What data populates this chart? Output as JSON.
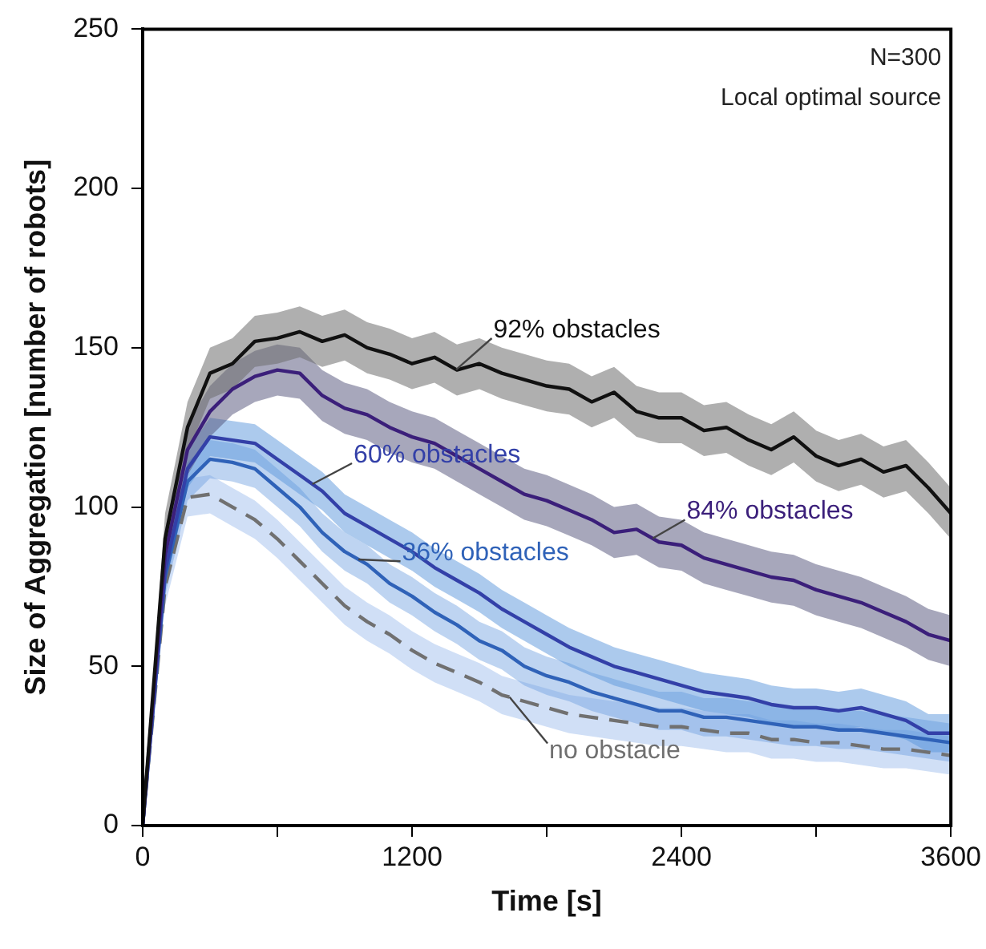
{
  "chart_data": {
    "type": "line",
    "xlabel": "Time [s]",
    "ylabel": "Size of Aggregation [number of robots]",
    "x": [
      0,
      100,
      200,
      300,
      400,
      500,
      600,
      700,
      800,
      900,
      1000,
      1100,
      1200,
      1300,
      1400,
      1500,
      1600,
      1700,
      1800,
      1900,
      2000,
      2100,
      2200,
      2300,
      2400,
      2500,
      2600,
      2700,
      2800,
      2900,
      3000,
      3100,
      3200,
      3300,
      3400,
      3500,
      3600
    ],
    "xlim": [
      0,
      3600
    ],
    "xticks": [
      0,
      {
        "value": 600,
        "label": null
      },
      1200,
      {
        "value": 1800,
        "label": null
      },
      2400,
      {
        "value": 3000,
        "label": null
      },
      3600
    ],
    "ylim": [
      0,
      250
    ],
    "yticks": [
      0,
      50,
      100,
      150,
      200,
      250
    ],
    "grid": false,
    "legend": false,
    "marker": "none",
    "annotations": [
      "N=300",
      "Local optimal source"
    ],
    "series": [
      {
        "name": "92% obstacles",
        "color": "#111111",
        "line_style": "solid",
        "values": [
          0,
          90,
          125,
          142,
          145,
          152,
          153,
          155,
          152,
          154,
          150,
          148,
          145,
          147,
          143,
          145,
          142,
          140,
          138,
          137,
          133,
          136,
          130,
          128,
          128,
          124,
          125,
          121,
          118,
          122,
          116,
          113,
          115,
          111,
          113,
          106,
          98
        ],
        "lower": [
          0,
          82,
          117,
          134,
          137,
          144,
          145,
          147,
          144,
          146,
          142,
          140,
          137,
          139,
          135,
          137,
          134,
          132,
          130,
          129,
          125,
          128,
          122,
          120,
          120,
          116,
          117,
          113,
          110,
          114,
          108,
          105,
          107,
          103,
          105,
          98,
          90
        ],
        "upper": [
          0,
          98,
          133,
          150,
          153,
          160,
          161,
          163,
          160,
          162,
          158,
          156,
          153,
          155,
          151,
          153,
          150,
          148,
          146,
          145,
          141,
          144,
          138,
          136,
          136,
          132,
          133,
          129,
          126,
          130,
          124,
          121,
          123,
          119,
          121,
          114,
          106
        ]
      },
      {
        "name": "84% obstacles",
        "color": "#3b1f7a",
        "line_style": "solid",
        "values": [
          0,
          85,
          118,
          130,
          137,
          141,
          143,
          142,
          135,
          131,
          129,
          125,
          122,
          120,
          116,
          112,
          108,
          104,
          102,
          99,
          96,
          92,
          93,
          89,
          88,
          84,
          82,
          80,
          78,
          77,
          74,
          72,
          70,
          67,
          64,
          60,
          58
        ],
        "lower": [
          0,
          77,
          110,
          122,
          129,
          133,
          135,
          134,
          127,
          123,
          121,
          117,
          114,
          112,
          108,
          104,
          100,
          96,
          94,
          91,
          88,
          84,
          85,
          81,
          80,
          76,
          74,
          72,
          70,
          69,
          66,
          64,
          62,
          59,
          56,
          52,
          50
        ],
        "upper": [
          0,
          93,
          126,
          138,
          145,
          149,
          151,
          150,
          143,
          139,
          137,
          133,
          130,
          128,
          124,
          120,
          116,
          112,
          110,
          107,
          104,
          100,
          101,
          97,
          96,
          92,
          90,
          88,
          86,
          85,
          82,
          80,
          78,
          75,
          72,
          68,
          66
        ]
      },
      {
        "name": "60% obstacles",
        "color": "#3340a8",
        "line_style": "solid",
        "values": [
          0,
          80,
          112,
          122,
          121,
          120,
          115,
          110,
          105,
          98,
          94,
          90,
          86,
          81,
          77,
          73,
          68,
          64,
          60,
          56,
          53,
          50,
          48,
          46,
          44,
          42,
          41,
          40,
          38,
          37,
          37,
          36,
          37,
          35,
          33,
          29,
          29
        ],
        "lower": [
          0,
          74,
          106,
          116,
          115,
          114,
          109,
          104,
          99,
          92,
          88,
          84,
          80,
          75,
          71,
          67,
          62,
          58,
          54,
          50,
          47,
          44,
          42,
          40,
          38,
          36,
          35,
          34,
          32,
          31,
          31,
          30,
          31,
          29,
          27,
          23,
          23
        ],
        "upper": [
          0,
          86,
          118,
          128,
          127,
          126,
          121,
          116,
          111,
          104,
          100,
          96,
          92,
          87,
          83,
          79,
          74,
          70,
          66,
          62,
          59,
          56,
          54,
          52,
          50,
          48,
          47,
          46,
          44,
          43,
          43,
          42,
          43,
          41,
          39,
          35,
          35
        ]
      },
      {
        "name": "36% obstacles",
        "color": "#2f62b8",
        "line_style": "solid",
        "values": [
          0,
          78,
          108,
          115,
          114,
          112,
          106,
          100,
          92,
          86,
          82,
          76,
          72,
          67,
          63,
          58,
          55,
          50,
          47,
          45,
          42,
          40,
          38,
          36,
          36,
          34,
          34,
          33,
          32,
          31,
          31,
          30,
          30,
          29,
          28,
          27,
          26
        ],
        "lower": [
          0,
          72,
          102,
          109,
          108,
          106,
          100,
          94,
          86,
          80,
          76,
          70,
          66,
          61,
          57,
          52,
          49,
          44,
          41,
          39,
          36,
          34,
          32,
          30,
          30,
          28,
          28,
          27,
          26,
          25,
          25,
          24,
          24,
          23,
          22,
          21,
          20
        ],
        "upper": [
          0,
          84,
          114,
          121,
          120,
          118,
          112,
          106,
          98,
          92,
          88,
          82,
          78,
          73,
          69,
          64,
          61,
          56,
          53,
          51,
          48,
          46,
          44,
          42,
          42,
          40,
          40,
          39,
          38,
          37,
          37,
          36,
          36,
          35,
          34,
          33,
          32
        ]
      },
      {
        "name": "no obstacle",
        "color": "#707070",
        "line_style": "dashed",
        "values": [
          0,
          75,
          103,
          104,
          100,
          96,
          90,
          83,
          76,
          69,
          64,
          60,
          55,
          51,
          48,
          45,
          41,
          39,
          37,
          35,
          34,
          33,
          32,
          31,
          31,
          30,
          29,
          29,
          27,
          27,
          26,
          26,
          25,
          24,
          24,
          23,
          22
        ],
        "lower": [
          0,
          69,
          97,
          98,
          94,
          90,
          84,
          77,
          70,
          63,
          58,
          54,
          49,
          45,
          42,
          39,
          35,
          33,
          31,
          29,
          28,
          27,
          26,
          25,
          25,
          24,
          23,
          23,
          21,
          21,
          20,
          20,
          19,
          18,
          18,
          17,
          16
        ],
        "upper": [
          0,
          81,
          109,
          110,
          106,
          102,
          96,
          89,
          82,
          75,
          70,
          66,
          61,
          57,
          54,
          51,
          47,
          45,
          43,
          41,
          40,
          39,
          38,
          37,
          37,
          36,
          35,
          35,
          33,
          33,
          32,
          32,
          31,
          30,
          30,
          29,
          28
        ]
      }
    ]
  }
}
